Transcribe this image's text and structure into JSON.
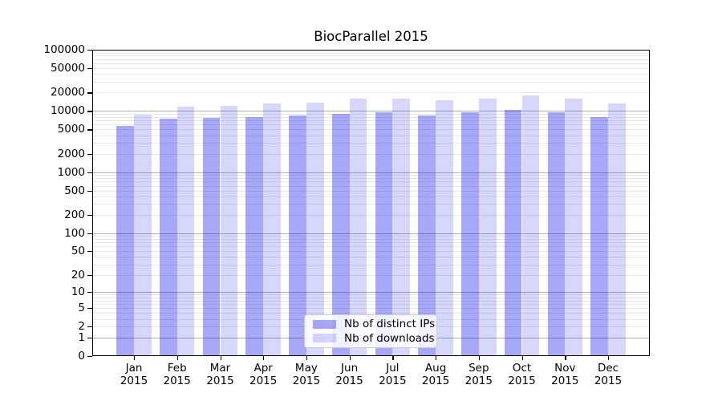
{
  "colors": {
    "bar_distinct_ips": "rgba(20,20,235,0.37)",
    "bar_downloads": "rgba(20,20,235,0.17)",
    "bar_distinct_ips_hex": "#a8a8f8",
    "bar_downloads_hex": "#d9d9fb",
    "grid_major": "#b0b0b0",
    "grid_minor": "#e7e7e7",
    "axis": "#000000",
    "legend_border": "#cccccc"
  },
  "legend": {
    "items": [
      {
        "label": "Nb of distinct IPs",
        "swatch": "bar_distinct_ips"
      },
      {
        "label": "Nb of downloads",
        "swatch": "bar_downloads"
      }
    ]
  },
  "chart_data": {
    "type": "bar",
    "title": "BiocParallel 2015",
    "categories": [
      "Jan 2015",
      "Feb 2015",
      "Mar 2015",
      "Apr 2015",
      "May 2015",
      "Jun 2015",
      "Jul 2015",
      "Aug 2015",
      "Sep 2015",
      "Oct 2015",
      "Nov 2015",
      "Dec 2015"
    ],
    "series": [
      {
        "name": "Nb of distinct IPs",
        "values": [
          5700,
          7500,
          7800,
          8000,
          8400,
          8900,
          9500,
          8400,
          9400,
          10300,
          9400,
          8000
        ]
      },
      {
        "name": "Nb of downloads",
        "values": [
          8700,
          11700,
          12200,
          13100,
          13600,
          15700,
          16000,
          15100,
          15900,
          17900,
          16000,
          13100
        ]
      }
    ],
    "xlabel": "",
    "ylabel": "",
    "yscale": "log1p",
    "ylim": [
      0,
      100000
    ],
    "yticks": [
      0,
      1,
      2,
      5,
      10,
      20,
      50,
      100,
      200,
      500,
      1000,
      2000,
      5000,
      10000,
      20000,
      50000,
      100000
    ],
    "grid": true,
    "legend_position": "lower center inside"
  }
}
